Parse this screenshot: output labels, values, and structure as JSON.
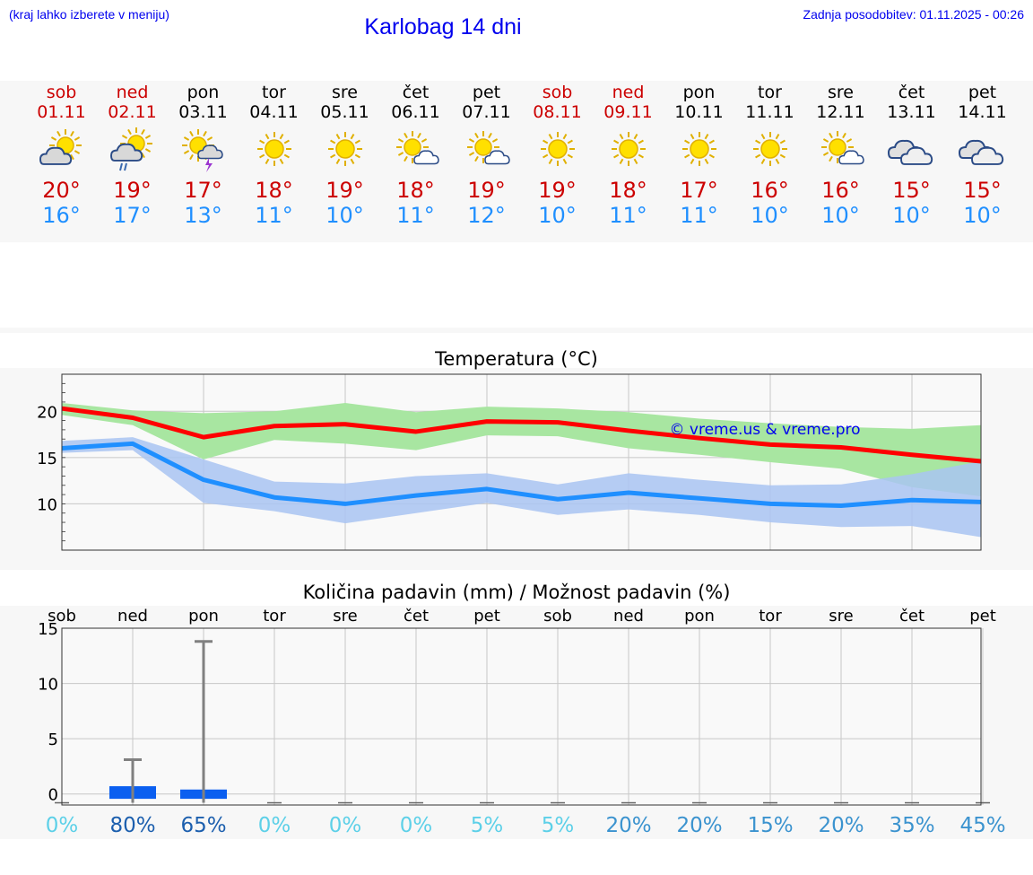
{
  "header": {
    "menu_hint": "(kraj lahko izberete v meniju)",
    "title": "Karlobag 14 dni",
    "updated": "Zadnja posodobitev: 01.11.2025 - 00:26"
  },
  "days": [
    {
      "name": "sob",
      "date": "01.11",
      "weekend": true,
      "icon": "sun-cloud-icon",
      "tmax": "20°",
      "tmin": "16°"
    },
    {
      "name": "ned",
      "date": "02.11",
      "weekend": true,
      "icon": "sun-cloud-rain-icon",
      "tmax": "19°",
      "tmin": "17°"
    },
    {
      "name": "pon",
      "date": "03.11",
      "weekend": false,
      "icon": "sun-cloud-thunder-icon",
      "tmax": "17°",
      "tmin": "13°"
    },
    {
      "name": "tor",
      "date": "04.11",
      "weekend": false,
      "icon": "sun-icon",
      "tmax": "18°",
      "tmin": "11°"
    },
    {
      "name": "sre",
      "date": "05.11",
      "weekend": false,
      "icon": "sun-icon",
      "tmax": "19°",
      "tmin": "10°"
    },
    {
      "name": "čet",
      "date": "06.11",
      "weekend": false,
      "icon": "sun-small-cloud-icon",
      "tmax": "18°",
      "tmin": "11°"
    },
    {
      "name": "pet",
      "date": "07.11",
      "weekend": false,
      "icon": "sun-small-cloud-icon",
      "tmax": "19°",
      "tmin": "12°"
    },
    {
      "name": "sob",
      "date": "08.11",
      "weekend": true,
      "icon": "sun-icon",
      "tmax": "19°",
      "tmin": "10°"
    },
    {
      "name": "ned",
      "date": "09.11",
      "weekend": true,
      "icon": "sun-icon",
      "tmax": "18°",
      "tmin": "11°"
    },
    {
      "name": "pon",
      "date": "10.11",
      "weekend": false,
      "icon": "sun-icon",
      "tmax": "17°",
      "tmin": "11°"
    },
    {
      "name": "tor",
      "date": "11.11",
      "weekend": false,
      "icon": "sun-icon",
      "tmax": "16°",
      "tmin": "10°"
    },
    {
      "name": "sre",
      "date": "12.11",
      "weekend": false,
      "icon": "sun-small-cloud-icon",
      "tmax": "16°",
      "tmin": "10°"
    },
    {
      "name": "čet",
      "date": "13.11",
      "weekend": false,
      "icon": "cloud-icon",
      "tmax": "15°",
      "tmin": "10°"
    },
    {
      "name": "pet",
      "date": "14.11",
      "weekend": false,
      "icon": "cloud-icon",
      "tmax": "15°",
      "tmin": "10°"
    }
  ],
  "colors": {
    "weekend": "#cc0000",
    "tmax": "#cc0000",
    "tmin": "#1f8fff",
    "max_line": "#ff0000",
    "max_band": "#a8e6a1",
    "min_line": "#1f8fff",
    "min_band": "#a9c4f2",
    "precip_bar": "#0b5ff0",
    "whisker": "#808080",
    "watermark": "#0000ee"
  },
  "chart_data": [
    {
      "type": "line",
      "title": "Temperatura (°C)",
      "ylim": [
        5,
        24
      ],
      "yticks": [
        10,
        15,
        20
      ],
      "x": [
        0,
        1,
        2,
        3,
        4,
        5,
        6,
        7,
        8,
        9,
        10,
        11,
        12,
        13
      ],
      "watermark": "© vreme.us & vreme.pro",
      "series": [
        {
          "name": "max",
          "values": [
            20.3,
            19.3,
            17.2,
            18.4,
            18.6,
            17.8,
            18.9,
            18.8,
            17.9,
            17.1,
            16.4,
            16.1,
            15.3,
            14.6
          ],
          "band_low": [
            19.6,
            18.5,
            14.8,
            16.9,
            16.5,
            15.8,
            17.4,
            17.3,
            16.0,
            15.3,
            14.5,
            13.8,
            11.8,
            10.8
          ],
          "band_high": [
            20.9,
            20.1,
            19.8,
            20.0,
            20.9,
            19.9,
            20.5,
            20.3,
            19.9,
            19.2,
            18.7,
            18.3,
            18.1,
            18.5
          ]
        },
        {
          "name": "min",
          "values": [
            16.0,
            16.5,
            12.6,
            10.7,
            10.0,
            10.9,
            11.6,
            10.5,
            11.2,
            10.6,
            10.0,
            9.8,
            10.4,
            10.2
          ],
          "band_low": [
            15.5,
            15.8,
            10.1,
            9.2,
            7.9,
            9.0,
            10.1,
            8.8,
            9.4,
            8.8,
            8.0,
            7.5,
            7.6,
            6.4
          ],
          "band_high": [
            16.8,
            17.2,
            14.8,
            12.4,
            12.2,
            13.0,
            13.3,
            12.1,
            13.3,
            12.6,
            12.0,
            12.1,
            13.2,
            14.6
          ]
        }
      ]
    },
    {
      "type": "bar",
      "title": "Količina padavin (mm) / Možnost padavin (%)",
      "ylim": [
        -1,
        15
      ],
      "yticks": [
        0,
        5,
        10,
        15
      ],
      "categories": [
        "sob",
        "ned",
        "pon",
        "tor",
        "sre",
        "čet",
        "pet",
        "sob",
        "ned",
        "pon",
        "tor",
        "sre",
        "čet",
        "pet"
      ],
      "values": [
        0,
        0.7,
        0.4,
        0,
        0,
        0,
        0,
        0,
        0,
        0,
        0,
        0,
        0,
        0
      ],
      "whisker_max": [
        0,
        3.1,
        13.8,
        0,
        0,
        0,
        0,
        0,
        0,
        0,
        0,
        0,
        0,
        0
      ],
      "probabilities": [
        "0%",
        "80%",
        "65%",
        "0%",
        "0%",
        "0%",
        "5%",
        "5%",
        "20%",
        "20%",
        "15%",
        "20%",
        "35%",
        "45%"
      ],
      "probability_values": [
        0,
        80,
        65,
        0,
        0,
        0,
        5,
        5,
        20,
        20,
        15,
        20,
        35,
        45
      ]
    }
  ]
}
